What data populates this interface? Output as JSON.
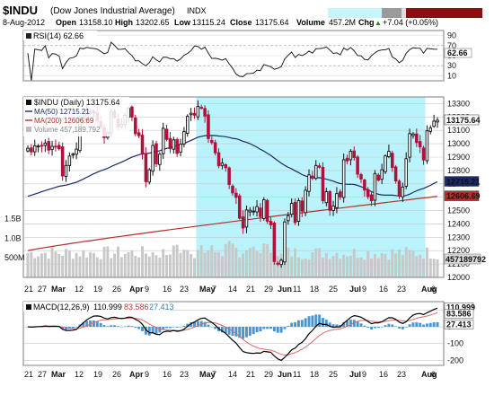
{
  "header": {
    "symbol": "$INDU",
    "name": "(Dow Jones Industrial Average)",
    "exchange": "INDX",
    "date": "8-Aug-2012",
    "open_label": "Open",
    "open": "13158.10",
    "high_label": "High",
    "high": "13202.65",
    "low_label": "Low",
    "low": "13115.24",
    "close_label": "Close",
    "close": "13175.64",
    "volume_label": "Volume",
    "volume": "457.2M",
    "chg_label": "Chg",
    "chg": "+7.04 (+0.05%)",
    "chg_arrow": "▲"
  },
  "colors": {
    "up": "#111111",
    "down": "#b0103a",
    "ma50": "#1c2a66",
    "ma200": "#b4302c",
    "volume": "#c8c8c8",
    "highlight": "#baf3fb",
    "macd_line": "#000000",
    "signal_line": "#d96a6a",
    "histogram": "#4a96d0",
    "rsi_line": "#222222"
  },
  "rsi": {
    "label": "RSI(14) 62.66",
    "ticks": [
      "90",
      "70",
      "50",
      "30",
      "10"
    ],
    "value_tag": "62.66",
    "ylim": [
      0,
      100
    ]
  },
  "price_panel": {
    "legend": [
      {
        "id": "price",
        "text": "$INDU (Daily) 13175.64",
        "icon": "candle-icon"
      },
      {
        "id": "ma50",
        "text": "MA(50) 12715.21",
        "icon": "line-icon"
      },
      {
        "id": "ma200",
        "text": "MA(200) 12606.69",
        "icon": "line-icon"
      },
      {
        "id": "volume",
        "text": "Volume 457,189,792",
        "icon": "bar-icon"
      }
    ],
    "y_ticks": [
      "13300",
      "13200",
      "13100",
      "13000",
      "12900",
      "12800",
      "12700",
      "12600",
      "12500",
      "12400",
      "12300",
      "12200",
      "12100",
      "12000"
    ],
    "tags": {
      "price": "13175.64",
      "ma50": "12715.21",
      "ma200": "12606.69",
      "volume": "457189792"
    },
    "volume_ticks": [
      "1.5B",
      "1.0B",
      "500M"
    ]
  },
  "macd": {
    "label": "MACD(12,26,9)",
    "value1": "110.999",
    "value2": "83.586",
    "value3": "27.413",
    "tags": {
      "macd": "110.999",
      "signal": "83.586",
      "hist": "27.413"
    },
    "ticks": [
      "100",
      "0",
      "-100",
      "-200"
    ],
    "ylim": [
      -230,
      150
    ]
  },
  "x_labels": [
    "21",
    "27",
    "Mar",
    "12",
    "19",
    "26",
    "Apr",
    "9",
    "16",
    "23",
    "May",
    "7",
    "14",
    "21",
    "29",
    "Jun",
    "11",
    "18",
    "25",
    "Jul",
    "9",
    "16",
    "23",
    "Aug",
    "6"
  ],
  "chart_data": {
    "type": "candlestick",
    "title": "$INDU (Dow Jones Industrial Average) INDX",
    "ylim": [
      12000,
      13350
    ],
    "highlight_range": [
      "2012-05-01",
      "2012-08-02"
    ],
    "dates": [
      "2012-02-21",
      "2012-02-22",
      "2012-02-23",
      "2012-02-24",
      "2012-02-27",
      "2012-02-28",
      "2012-02-29",
      "2012-03-01",
      "2012-03-02",
      "2012-03-05",
      "2012-03-06",
      "2012-03-07",
      "2012-03-08",
      "2012-03-09",
      "2012-03-12",
      "2012-03-13",
      "2012-03-14",
      "2012-03-15",
      "2012-03-16",
      "2012-03-19",
      "2012-03-20",
      "2012-03-21",
      "2012-03-22",
      "2012-03-23",
      "2012-03-26",
      "2012-03-27",
      "2012-03-28",
      "2012-03-29",
      "2012-03-30",
      "2012-04-02",
      "2012-04-03",
      "2012-04-04",
      "2012-04-05",
      "2012-04-09",
      "2012-04-10",
      "2012-04-11",
      "2012-04-12",
      "2012-04-13",
      "2012-04-16",
      "2012-04-17",
      "2012-04-18",
      "2012-04-19",
      "2012-04-20",
      "2012-04-23",
      "2012-04-24",
      "2012-04-25",
      "2012-04-26",
      "2012-04-27",
      "2012-04-30",
      "2012-05-01",
      "2012-05-02",
      "2012-05-03",
      "2012-05-04",
      "2012-05-07",
      "2012-05-08",
      "2012-05-09",
      "2012-05-10",
      "2012-05-11",
      "2012-05-14",
      "2012-05-15",
      "2012-05-16",
      "2012-05-17",
      "2012-05-18",
      "2012-05-21",
      "2012-05-22",
      "2012-05-23",
      "2012-05-24",
      "2012-05-25",
      "2012-05-29",
      "2012-05-30",
      "2012-05-31",
      "2012-06-01",
      "2012-06-04",
      "2012-06-05",
      "2012-06-06",
      "2012-06-07",
      "2012-06-08",
      "2012-06-11",
      "2012-06-12",
      "2012-06-13",
      "2012-06-14",
      "2012-06-15",
      "2012-06-18",
      "2012-06-19",
      "2012-06-20",
      "2012-06-21",
      "2012-06-22",
      "2012-06-25",
      "2012-06-26",
      "2012-06-27",
      "2012-06-28",
      "2012-06-29",
      "2012-07-02",
      "2012-07-03",
      "2012-07-05",
      "2012-07-06",
      "2012-07-09",
      "2012-07-10",
      "2012-07-11",
      "2012-07-12",
      "2012-07-13",
      "2012-07-16",
      "2012-07-17",
      "2012-07-18",
      "2012-07-19",
      "2012-07-20",
      "2012-07-23",
      "2012-07-24",
      "2012-07-25",
      "2012-07-26",
      "2012-07-27",
      "2012-07-30",
      "2012-07-31",
      "2012-08-01",
      "2012-08-02",
      "2012-08-03",
      "2012-08-06",
      "2012-08-07",
      "2012-08-08"
    ],
    "close": [
      12965.69,
      12938.67,
      12984.69,
      12982.95,
      12981.51,
      13005.12,
      12952.07,
      12980.3,
      12977.57,
      12962.81,
      12759.15,
      12837.33,
      12907.94,
      12922.02,
      12959.71,
      13177.68,
      13194.1,
      13252.76,
      13232.62,
      13239.13,
      13170.19,
      13124.62,
      13046.14,
      13080.73,
      13241.63,
      13197.73,
      13126.21,
      13145.82,
      13212.04,
      13264.49,
      13199.55,
      13074.75,
      13060.14,
      12929.59,
      12715.93,
      12805.39,
      12986.58,
      12849.59,
      12921.41,
      13115.54,
      13032.75,
      12964.1,
      13029.26,
      12927.17,
      12997.36,
      13090.72,
      13204.62,
      13228.31,
      13213.63,
      13279.32,
      13268.57,
      13206.59,
      13038.27,
      13008.53,
      12932.09,
      12835.06,
      12855.04,
      12820.6,
      12695.35,
      12632.0,
      12598.55,
      12442.49,
      12369.38,
      12504.48,
      12502.81,
      12496.15,
      12529.75,
      12454.83,
      12580.69,
      12419.86,
      12393.45,
      12118.57,
      12101.46,
      12127.95,
      12414.79,
      12460.96,
      12554.2,
      12411.23,
      12573.8,
      12496.38,
      12651.91,
      12767.17,
      12741.82,
      12837.33,
      12824.39,
      12573.57,
      12640.78,
      12502.66,
      12534.67,
      12627.01,
      12601.36,
      12880.09,
      12871.39,
      12943.82,
      12896.67,
      12772.47,
      12736.29,
      12653.12,
      12604.53,
      12573.27,
      12777.09,
      12727.21,
      12805.54,
      12908.7,
      12943.36,
      12822.57,
      12721.46,
      12617.32,
      12676.05,
      12887.93,
      13075.66,
      13073.01,
      13008.68,
      12976.13,
      12878.88,
      13096.17,
      13117.51,
      13168.6,
      13175.64
    ],
    "ma50_end": 12715.21,
    "ma200_end": 12606.69,
    "volume_end": 457189792,
    "rsi_end": 62.66,
    "macd_end": 110.999,
    "signal_end": 83.586,
    "hist_end": 27.413
  }
}
